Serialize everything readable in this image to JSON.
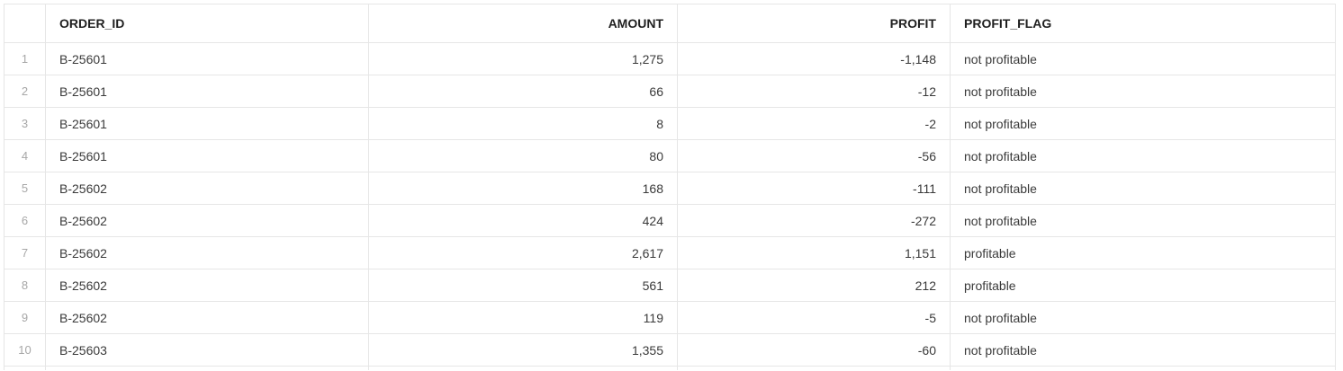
{
  "table": {
    "columns": [
      {
        "key": "row",
        "label": ""
      },
      {
        "key": "order_id",
        "label": "ORDER_ID"
      },
      {
        "key": "amount",
        "label": "AMOUNT"
      },
      {
        "key": "profit",
        "label": "PROFIT"
      },
      {
        "key": "profit_flag",
        "label": "PROFIT_FLAG"
      }
    ],
    "rows": [
      {
        "row": "1",
        "order_id": "B-25601",
        "amount": "1,275",
        "profit": "-1,148",
        "profit_flag": "not profitable"
      },
      {
        "row": "2",
        "order_id": "B-25601",
        "amount": "66",
        "profit": "-12",
        "profit_flag": "not profitable"
      },
      {
        "row": "3",
        "order_id": "B-25601",
        "amount": "8",
        "profit": "-2",
        "profit_flag": "not profitable"
      },
      {
        "row": "4",
        "order_id": "B-25601",
        "amount": "80",
        "profit": "-56",
        "profit_flag": "not profitable"
      },
      {
        "row": "5",
        "order_id": "B-25602",
        "amount": "168",
        "profit": "-111",
        "profit_flag": "not profitable"
      },
      {
        "row": "6",
        "order_id": "B-25602",
        "amount": "424",
        "profit": "-272",
        "profit_flag": "not profitable"
      },
      {
        "row": "7",
        "order_id": "B-25602",
        "amount": "2,617",
        "profit": "1,151",
        "profit_flag": "profitable"
      },
      {
        "row": "8",
        "order_id": "B-25602",
        "amount": "561",
        "profit": "212",
        "profit_flag": "profitable"
      },
      {
        "row": "9",
        "order_id": "B-25602",
        "amount": "119",
        "profit": "-5",
        "profit_flag": "not profitable"
      },
      {
        "row": "10",
        "order_id": "B-25603",
        "amount": "1,355",
        "profit": "-60",
        "profit_flag": "not profitable"
      }
    ]
  }
}
